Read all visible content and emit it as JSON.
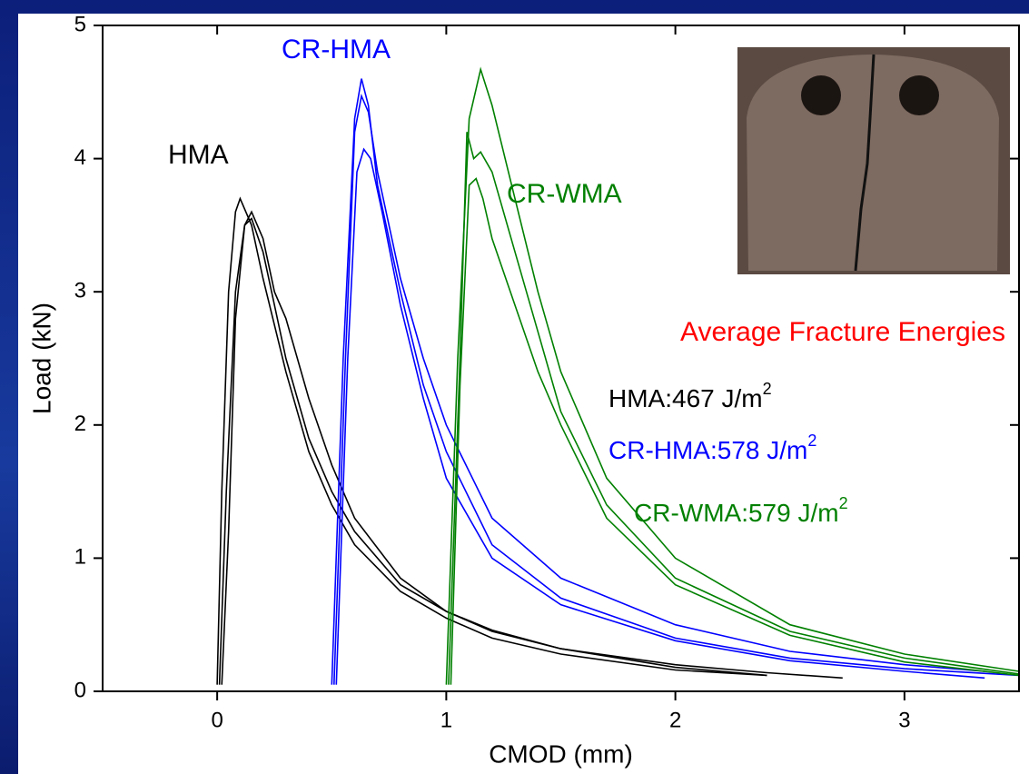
{
  "chart_data": {
    "type": "line",
    "xlabel": "CMOD (mm)",
    "ylabel": "Load (kN)",
    "xlim": [
      -0.5,
      3.5
    ],
    "ylim": [
      0,
      5
    ],
    "xticks": [
      0,
      1,
      2,
      3
    ],
    "yticks": [
      0,
      1,
      2,
      3,
      4,
      5
    ],
    "series": [
      {
        "color": "#000000",
        "x": [
          0,
          0.02,
          0.05,
          0.08,
          0.1,
          0.15,
          0.2,
          0.3,
          0.4,
          0.5,
          0.6,
          0.8,
          1.0,
          1.2,
          1.5,
          2.0,
          2.4
        ],
        "values": [
          0.05,
          1.5,
          3.0,
          3.6,
          3.7,
          3.5,
          3.1,
          2.4,
          1.8,
          1.4,
          1.1,
          0.75,
          0.55,
          0.4,
          0.28,
          0.16,
          0.12
        ]
      },
      {
        "color": "#000000",
        "x": [
          0.01,
          0.04,
          0.08,
          0.12,
          0.15,
          0.2,
          0.25,
          0.3,
          0.4,
          0.5,
          0.6,
          0.8,
          1.0,
          1.2,
          1.5,
          2.0,
          2.4
        ],
        "values": [
          0.05,
          1.5,
          3.0,
          3.5,
          3.6,
          3.4,
          3.0,
          2.8,
          2.2,
          1.7,
          1.3,
          0.85,
          0.6,
          0.45,
          0.32,
          0.18,
          0.12
        ]
      },
      {
        "color": "#000000",
        "x": [
          0.02,
          0.05,
          0.08,
          0.12,
          0.15,
          0.2,
          0.3,
          0.4,
          0.5,
          0.6,
          0.8,
          1.0,
          1.2,
          1.5,
          2.0,
          2.4,
          2.73
        ],
        "values": [
          0.05,
          1.2,
          2.8,
          3.5,
          3.55,
          3.3,
          2.5,
          1.9,
          1.5,
          1.2,
          0.8,
          0.6,
          0.46,
          0.32,
          0.2,
          0.14,
          0.1
        ]
      },
      {
        "color": "#0000ff",
        "x": [
          0.5,
          0.55,
          0.6,
          0.63,
          0.66,
          0.7,
          0.8,
          0.9,
          1.0,
          1.2,
          1.5,
          2.0,
          2.5,
          3.0,
          3.5
        ],
        "values": [
          0.05,
          2.5,
          4.3,
          4.6,
          4.4,
          3.8,
          3.0,
          2.3,
          1.8,
          1.1,
          0.7,
          0.4,
          0.25,
          0.17,
          0.12
        ]
      },
      {
        "color": "#0000ff",
        "x": [
          0.51,
          0.56,
          0.6,
          0.63,
          0.66,
          0.7,
          0.8,
          0.9,
          1.0,
          1.2,
          1.5,
          2.0,
          2.5,
          3.0,
          3.35
        ],
        "values": [
          0.05,
          2.5,
          4.2,
          4.47,
          4.35,
          3.9,
          3.1,
          2.5,
          2.0,
          1.3,
          0.85,
          0.5,
          0.3,
          0.2,
          0.15
        ]
      },
      {
        "color": "#0000ff",
        "x": [
          0.52,
          0.57,
          0.61,
          0.64,
          0.67,
          0.72,
          0.8,
          0.9,
          1.0,
          1.2,
          1.5,
          2.0,
          2.5,
          3.0,
          3.35
        ],
        "values": [
          0.05,
          2.5,
          3.9,
          4.07,
          4.0,
          3.6,
          2.9,
          2.2,
          1.6,
          1.0,
          0.65,
          0.38,
          0.23,
          0.15,
          0.1
        ]
      },
      {
        "color": "#008000",
        "x": [
          1.0,
          1.05,
          1.1,
          1.15,
          1.2,
          1.3,
          1.4,
          1.5,
          1.7,
          2.0,
          2.5,
          3.0,
          3.5
        ],
        "values": [
          0.05,
          2.5,
          4.3,
          4.67,
          4.4,
          3.7,
          3.0,
          2.4,
          1.6,
          1.0,
          0.5,
          0.28,
          0.15
        ]
      },
      {
        "color": "#008000",
        "x": [
          1.01,
          1.06,
          1.09,
          1.12,
          1.15,
          1.2,
          1.3,
          1.4,
          1.5,
          1.7,
          2.0,
          2.5,
          3.0,
          3.5
        ],
        "values": [
          0.05,
          2.5,
          4.2,
          4.0,
          4.05,
          3.9,
          3.3,
          2.7,
          2.1,
          1.4,
          0.85,
          0.45,
          0.25,
          0.13
        ]
      },
      {
        "color": "#008000",
        "x": [
          1.02,
          1.06,
          1.1,
          1.13,
          1.16,
          1.2,
          1.3,
          1.4,
          1.5,
          1.7,
          2.0,
          2.5,
          3.0,
          3.5
        ],
        "values": [
          0.05,
          2.3,
          3.8,
          3.85,
          3.7,
          3.4,
          2.9,
          2.4,
          2.0,
          1.3,
          0.8,
          0.42,
          0.22,
          0.12
        ]
      }
    ],
    "annotations": [
      {
        "text": "CR-HMA",
        "color": "#0000ff"
      },
      {
        "text": "HMA",
        "color": "#000000"
      },
      {
        "text": "CR-WMA",
        "color": "#008000"
      },
      {
        "text": "Average Fracture Energies",
        "color": "#ff0000"
      },
      {
        "text": "HMA:467 J/m",
        "sup": "2",
        "color": "#000000"
      },
      {
        "text": "CR-HMA:578 J/m",
        "sup": "2",
        "color": "#0000ff"
      },
      {
        "text": "CR-WMA:579 J/m",
        "sup": "2",
        "color": "#008000"
      }
    ]
  }
}
